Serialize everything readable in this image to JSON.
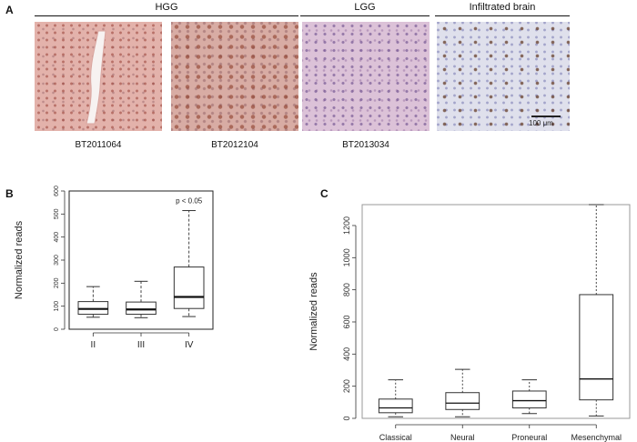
{
  "panel_a": {
    "letter": "A",
    "groups": [
      {
        "label": "HGG"
      },
      {
        "label": "LGG"
      },
      {
        "label": "Infiltrated brain"
      }
    ],
    "images": [
      {
        "caption": "BT2011064",
        "stain": "pink-brown"
      },
      {
        "caption": "BT2012104",
        "stain": "brown"
      },
      {
        "caption": "BT2013034",
        "stain": "purple"
      },
      {
        "caption": "",
        "stain": "blue-brown"
      }
    ],
    "scale_bar_label": "100 μm"
  },
  "chart_data": [
    {
      "panel": "B",
      "type": "box",
      "ylabel": "Normalized reads",
      "xlabel": "",
      "categories": [
        "II",
        "III",
        "IV"
      ],
      "ylim": [
        0,
        600
      ],
      "yticks": [
        0,
        100,
        200,
        300,
        400,
        500,
        600
      ],
      "boxes": [
        {
          "min": 52,
          "q1": 65,
          "median": 88,
          "q3": 120,
          "max": 185
        },
        {
          "min": 50,
          "q1": 65,
          "median": 86,
          "q3": 118,
          "max": 208
        },
        {
          "min": 55,
          "q1": 90,
          "median": 140,
          "q3": 270,
          "max": 515
        }
      ],
      "annotation": {
        "text": "p < 0.05",
        "category": "IV"
      }
    },
    {
      "panel": "C",
      "type": "box",
      "ylabel": "Normalized reads",
      "xlabel": "",
      "categories": [
        "Classical",
        "Neural",
        "Proneural",
        "Mesenchymal"
      ],
      "ylim": [
        0,
        1330
      ],
      "yticks": [
        0,
        200,
        400,
        600,
        800,
        1000,
        1200
      ],
      "boxes": [
        {
          "min": 10,
          "q1": 35,
          "median": 65,
          "q3": 120,
          "max": 240
        },
        {
          "min": 10,
          "q1": 55,
          "median": 95,
          "q3": 160,
          "max": 305
        },
        {
          "min": 30,
          "q1": 65,
          "median": 110,
          "q3": 170,
          "max": 240
        },
        {
          "min": 15,
          "q1": 115,
          "median": 245,
          "q3": 770,
          "max": 1330
        }
      ]
    }
  ]
}
